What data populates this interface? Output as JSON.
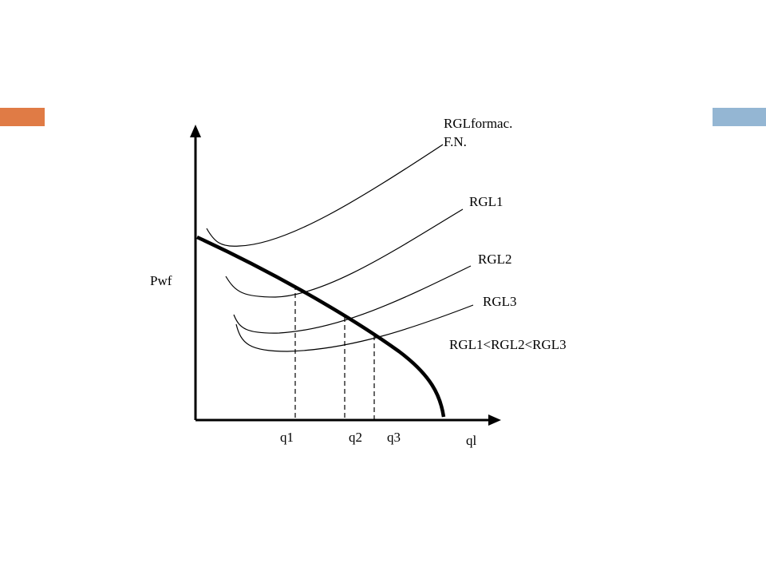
{
  "colors": {
    "accent_left": "#E07B45",
    "accent_right": "#94B6D3",
    "ink": "#000000"
  },
  "diagram": {
    "y_axis_label": "Pwf",
    "x_axis_label": "ql",
    "x_marks": [
      "q1",
      "q2",
      "q3"
    ],
    "curves": [
      {
        "label_line1": "RGLformac.",
        "label_line2": "F.N."
      },
      {
        "label": "RGL1"
      },
      {
        "label": "RGL2"
      },
      {
        "label": "RGL3"
      }
    ],
    "relation_note": "RGL1<RGL2<RGL3"
  }
}
